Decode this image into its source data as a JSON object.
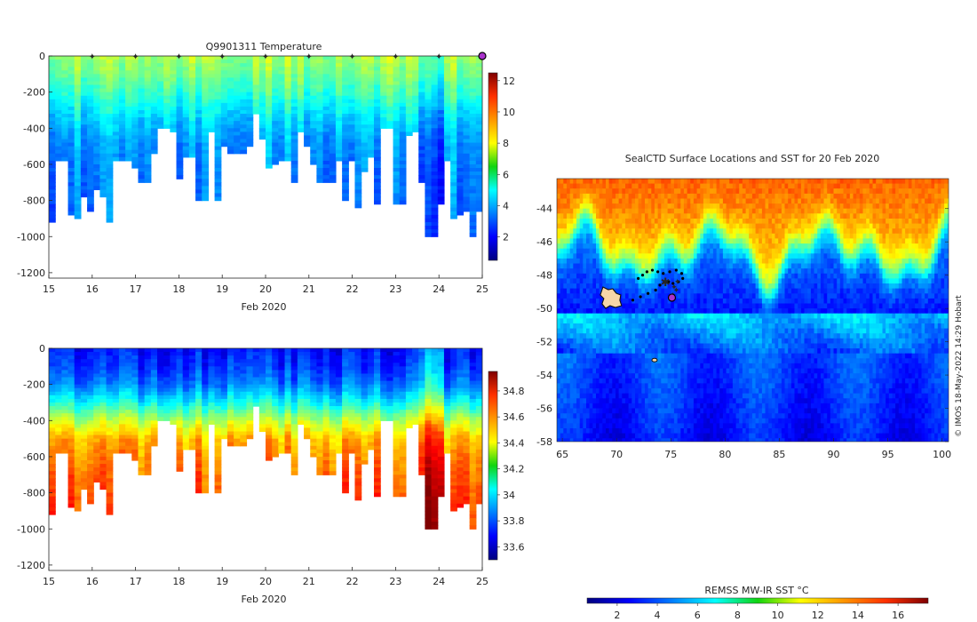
{
  "chart_data": [
    {
      "id": "temperature-section",
      "type": "heatmap",
      "title": "Q9901311  Temperature",
      "xlabel": "Feb 2020",
      "ylabel": "",
      "xlim": [
        15,
        25
      ],
      "ylim": [
        -1230,
        0
      ],
      "x_ticks": [
        "15",
        "16",
        "17",
        "18",
        "19",
        "20",
        "21",
        "22",
        "23",
        "24",
        "25"
      ],
      "y_ticks": [
        "0",
        "-200",
        "-400",
        "-600",
        "-800",
        "-1000",
        "-1200"
      ],
      "colorbar": {
        "min": 0.5,
        "max": 12.5,
        "ticks": [
          "2",
          "4",
          "6",
          "8",
          "10",
          "12"
        ]
      },
      "surface_markers_days": [
        16,
        17,
        18,
        19,
        20,
        21,
        22,
        23,
        24
      ],
      "profile_end_marker_day": 25,
      "profile_count": 68,
      "profile_max_depths_m": [
        910,
        570,
        570,
        865,
        900,
        780,
        855,
        730,
        770,
        920,
        575,
        580,
        575,
        605,
        700,
        700,
        530,
        400,
        400,
        405,
        665,
        555,
        550,
        800,
        800,
        410,
        800,
        500,
        535,
        540,
        530,
        500,
        310,
        460,
        620,
        600,
        580,
        570,
        700,
        405,
        500,
        600,
        700,
        700,
        700,
        580,
        795,
        570,
        835,
        635,
        550,
        820,
        400,
        400,
        815,
        820,
        430,
        405,
        685,
        1000,
        1000,
        810,
        580,
        900,
        880,
        860,
        1000,
        860
      ],
      "value_profile": [
        7.0,
        6.5,
        5.8,
        5.0,
        4.3,
        3.9,
        3.7,
        3.6,
        3.5,
        3.4,
        3.3
      ]
    },
    {
      "id": "salinity-section",
      "type": "heatmap",
      "title": "",
      "xlabel": "Feb 2020",
      "ylabel": "",
      "xlim": [
        15,
        25
      ],
      "ylim": [
        -1230,
        0
      ],
      "x_ticks": [
        "15",
        "16",
        "17",
        "18",
        "19",
        "20",
        "21",
        "22",
        "23",
        "24",
        "25"
      ],
      "y_ticks": [
        "0",
        "-200",
        "-400",
        "-600",
        "-800",
        "-1000",
        "-1200"
      ],
      "colorbar": {
        "min": 33.5,
        "max": 34.95,
        "ticks": [
          "33.6",
          "33.8",
          "34",
          "34.2",
          "34.4",
          "34.6",
          "34.8"
        ]
      },
      "value_profile": [
        33.7,
        33.75,
        33.85,
        34.05,
        34.3,
        34.5,
        34.57,
        34.62,
        34.66,
        34.69,
        34.71
      ]
    },
    {
      "id": "sst-map",
      "type": "heatmap",
      "title": "SealCTD Surface Locations and SST for 20 Feb 2020",
      "xlabel": "",
      "ylabel": "",
      "xlim": [
        64.5,
        100.6
      ],
      "ylim": [
        -58,
        -42.2
      ],
      "x_ticks": [
        "65",
        "70",
        "75",
        "80",
        "85",
        "90",
        "95",
        "100"
      ],
      "y_ticks": [
        "-44",
        "-46",
        "-48",
        "-50",
        "-52",
        "-54",
        "-56",
        "-58"
      ],
      "colorbar": {
        "label": "REMSS MW-IR SST °C",
        "min": 0.5,
        "max": 17.5,
        "ticks": [
          "2",
          "4",
          "6",
          "8",
          "10",
          "12",
          "14",
          "16"
        ]
      },
      "track": [
        [
          72.0,
          -48.2
        ],
        [
          72.4,
          -48.0
        ],
        [
          72.8,
          -47.8
        ],
        [
          73.3,
          -47.7
        ],
        [
          73.8,
          -47.8
        ],
        [
          74.3,
          -47.9
        ],
        [
          74.9,
          -47.8
        ],
        [
          75.5,
          -47.7
        ],
        [
          76.0,
          -47.9
        ],
        [
          76.1,
          -48.2
        ],
        [
          75.7,
          -48.4
        ],
        [
          75.2,
          -48.5
        ],
        [
          74.8,
          -48.4
        ],
        [
          74.4,
          -48.4
        ],
        [
          74.0,
          -48.6
        ],
        [
          73.6,
          -48.9
        ],
        [
          72.9,
          -49.1
        ],
        [
          72.2,
          -49.3
        ],
        [
          71.5,
          -49.5
        ]
      ],
      "recent_positions": [
        [
          75.6,
          -48.4
        ],
        [
          75.3,
          -48.7
        ],
        [
          75.5,
          -48.9
        ],
        [
          75.2,
          -49.2
        ]
      ],
      "last_position": [
        75.1,
        -49.35
      ],
      "kerguelen_island": [
        69.4,
        -49.3
      ],
      "heard_island": [
        73.5,
        -53.1
      ],
      "credit": "© IMOS 18-May-2022 14:29 Hobart"
    }
  ],
  "colors": {
    "axis": "#262626",
    "marker_magenta": "#ff00ff",
    "marker_purple": "#aa33cc",
    "land": "#f6d6a8"
  }
}
